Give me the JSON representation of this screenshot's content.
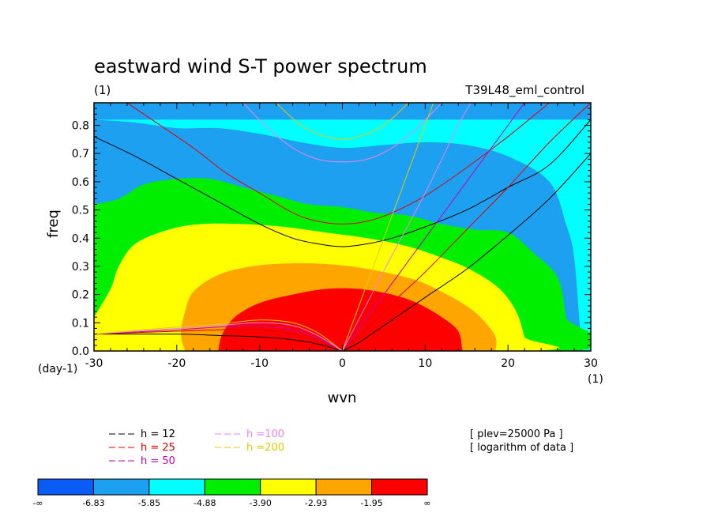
{
  "chart_data": {
    "type": "heatmap",
    "title": "eastward wind S-T power spectrum",
    "subtitle_left": "(1)",
    "subtitle_right": "T39L48_eml_control",
    "xlabel": "wvn",
    "ylabel": "freq",
    "x_unit": "(1)",
    "y_unit": "(day-1)",
    "xlim": [
      -30,
      30
    ],
    "ylim": [
      0.0,
      0.88
    ],
    "xticks": [
      -30,
      -20,
      -10,
      0,
      10,
      20,
      30
    ],
    "xtick_labels": [
      "-30",
      "-20",
      "-10",
      "0",
      "10",
      "20",
      "30"
    ],
    "yticks": [
      0.0,
      0.1,
      0.2,
      0.3,
      0.4,
      0.5,
      0.6,
      0.7,
      0.8
    ],
    "ytick_labels": [
      "0.0",
      "0.1",
      "0.2",
      "0.3",
      "0.4",
      "0.5",
      "0.6",
      "0.7",
      "0.8"
    ],
    "color_levels": {
      "boundaries": [
        "-∞",
        "-6.83",
        "-5.85",
        "-4.88",
        "-3.90",
        "-2.93",
        "-1.95",
        "∞"
      ],
      "colors": [
        "#0a5cf5",
        "#1ea0f0",
        "#00ffff",
        "#00ee00",
        "#ffff00",
        "#ffa500",
        "#ff0000"
      ]
    },
    "filled_regions": [
      {
        "level": 1,
        "color": "#1ea0f0",
        "boundary": [
          [
            -30,
            0.88
          ],
          [
            -30,
            0.88
          ],
          [
            30,
            0.88
          ],
          [
            30,
            0.88
          ]
        ]
      },
      {
        "level": 2,
        "color": "#00ffff",
        "boundary": [
          [
            -30,
            0.82
          ],
          [
            -25,
            0.81
          ],
          [
            -20,
            0.79
          ],
          [
            -15,
            0.79
          ],
          [
            -10,
            0.77
          ],
          [
            -5,
            0.74
          ],
          [
            0,
            0.72
          ],
          [
            5,
            0.73
          ],
          [
            10,
            0.74
          ],
          [
            15,
            0.73
          ],
          [
            20,
            0.69
          ],
          [
            25,
            0.6
          ],
          [
            27,
            0.45
          ],
          [
            28,
            0.33
          ],
          [
            29,
            0.0
          ],
          [
            30,
            0.0
          ],
          [
            30,
            0.82
          ]
        ]
      },
      {
        "level": 3,
        "color": "#00ee00",
        "boundary": [
          [
            -30,
            0.52
          ],
          [
            -27,
            0.54
          ],
          [
            -24,
            0.59
          ],
          [
            -20,
            0.61
          ],
          [
            -16,
            0.61
          ],
          [
            -12,
            0.58
          ],
          [
            -8,
            0.55
          ],
          [
            -4,
            0.52
          ],
          [
            0,
            0.51
          ],
          [
            4,
            0.49
          ],
          [
            8,
            0.48
          ],
          [
            12,
            0.45
          ],
          [
            16,
            0.43
          ],
          [
            20,
            0.42
          ],
          [
            23,
            0.35
          ],
          [
            26,
            0.26
          ],
          [
            27,
            0.12
          ],
          [
            27.5,
            0.0
          ],
          [
            -30,
            0.0
          ]
        ]
      },
      {
        "level": 4,
        "color": "#ffff00",
        "boundary": [
          [
            -30,
            0.12
          ],
          [
            -28,
            0.22
          ],
          [
            -27,
            0.3
          ],
          [
            -25,
            0.38
          ],
          [
            -21,
            0.43
          ],
          [
            -17,
            0.45
          ],
          [
            -12,
            0.45
          ],
          [
            -7,
            0.44
          ],
          [
            -2,
            0.42
          ],
          [
            3,
            0.4
          ],
          [
            8,
            0.37
          ],
          [
            13,
            0.32
          ],
          [
            16,
            0.28
          ],
          [
            19,
            0.22
          ],
          [
            21,
            0.14
          ],
          [
            22,
            0.05
          ],
          [
            22.5,
            0.0
          ],
          [
            -29,
            0.0
          ],
          [
            -30,
            0.03
          ]
        ]
      },
      {
        "level": 5,
        "color": "#ffa500",
        "boundary": [
          [
            -19,
            0.0
          ],
          [
            -19.5,
            0.06
          ],
          [
            -19,
            0.14
          ],
          [
            -18,
            0.21
          ],
          [
            -15,
            0.27
          ],
          [
            -11,
            0.3
          ],
          [
            -7,
            0.31
          ],
          [
            -3,
            0.31
          ],
          [
            1,
            0.3
          ],
          [
            5,
            0.28
          ],
          [
            9,
            0.25
          ],
          [
            12,
            0.21
          ],
          [
            15,
            0.16
          ],
          [
            17,
            0.11
          ],
          [
            18.5,
            0.05
          ],
          [
            18.5,
            0.0
          ]
        ]
      },
      {
        "level": 6,
        "color": "#ff0000",
        "boundary": [
          [
            -15,
            0.0
          ],
          [
            -14.5,
            0.06
          ],
          [
            -13,
            0.12
          ],
          [
            -10,
            0.17
          ],
          [
            -6,
            0.2
          ],
          [
            -2,
            0.22
          ],
          [
            2,
            0.22
          ],
          [
            6,
            0.2
          ],
          [
            9,
            0.17
          ],
          [
            12,
            0.12
          ],
          [
            14,
            0.07
          ],
          [
            14.5,
            0.0
          ]
        ]
      }
    ],
    "dispersion_curves": [
      {
        "name": "h = 12",
        "color": "#000000",
        "curves": [
          [
            [
              -30,
              0.76
            ],
            [
              -25,
              0.69
            ],
            [
              -20,
              0.61
            ],
            [
              -15,
              0.53
            ],
            [
              -10,
              0.45
            ],
            [
              -6,
              0.4
            ],
            [
              -3,
              0.38
            ],
            [
              0,
              0.37
            ],
            [
              3,
              0.38
            ],
            [
              6,
              0.4
            ],
            [
              10,
              0.44
            ],
            [
              15,
              0.5
            ],
            [
              20,
              0.58
            ],
            [
              25,
              0.66
            ],
            [
              30,
              0.82
            ]
          ],
          [
            [
              -30,
              0.06
            ],
            [
              -20,
              0.06
            ],
            [
              -15,
              0.055
            ],
            [
              -10,
              0.05
            ],
            [
              -6,
              0.04
            ],
            [
              -3,
              0.025
            ],
            [
              0,
              0.0
            ]
          ],
          [
            [
              0,
              0.0
            ],
            [
              2,
              0.03
            ],
            [
              5,
              0.09
            ],
            [
              10,
              0.19
            ],
            [
              15,
              0.29
            ],
            [
              20,
              0.41
            ],
            [
              25,
              0.54
            ],
            [
              30,
              0.7
            ]
          ]
        ]
      },
      {
        "name": "h = 25",
        "color": "#e00000",
        "curves": [
          [
            [
              -26,
              0.88
            ],
            [
              -22,
              0.8
            ],
            [
              -18,
              0.72
            ],
            [
              -14,
              0.63
            ],
            [
              -10,
              0.56
            ],
            [
              -6,
              0.49
            ],
            [
              -3,
              0.46
            ],
            [
              0,
              0.45
            ],
            [
              3,
              0.46
            ],
            [
              6,
              0.49
            ],
            [
              10,
              0.55
            ],
            [
              15,
              0.65
            ],
            [
              20,
              0.76
            ],
            [
              25,
              0.88
            ]
          ],
          [
            [
              -30,
              0.06
            ],
            [
              -20,
              0.07
            ],
            [
              -15,
              0.075
            ],
            [
              -10,
              0.075
            ],
            [
              -6,
              0.06
            ],
            [
              -3,
              0.035
            ],
            [
              0,
              0.0
            ]
          ],
          [
            [
              0,
              0.0
            ],
            [
              3,
              0.08
            ],
            [
              6,
              0.17
            ],
            [
              10,
              0.28
            ],
            [
              15,
              0.43
            ],
            [
              20,
              0.58
            ],
            [
              25,
              0.74
            ],
            [
              30,
              0.88
            ]
          ]
        ]
      },
      {
        "name": "h = 50",
        "color": "#c000c0",
        "curves": [
          [
            [
              -30,
              0.06
            ],
            [
              -20,
              0.075
            ],
            [
              -15,
              0.085
            ],
            [
              -10,
              0.09
            ],
            [
              -6,
              0.075
            ],
            [
              -3,
              0.045
            ],
            [
              0,
              0.0
            ]
          ],
          [
            [
              0,
              0.0
            ],
            [
              3,
              0.12
            ],
            [
              6,
              0.24
            ],
            [
              10,
              0.4
            ],
            [
              15,
              0.6
            ],
            [
              20,
              0.8
            ],
            [
              22,
              0.88
            ]
          ]
        ]
      },
      {
        "name": "h =100",
        "color": "#ee82ee",
        "curves": [
          [
            [
              -12,
              0.88
            ],
            [
              -9,
              0.79
            ],
            [
              -6,
              0.72
            ],
            [
              -3,
              0.68
            ],
            [
              0,
              0.67
            ],
            [
              3,
              0.68
            ],
            [
              6,
              0.72
            ],
            [
              9,
              0.79
            ],
            [
              12,
              0.88
            ]
          ],
          [
            [
              -30,
              0.06
            ],
            [
              -20,
              0.08
            ],
            [
              -15,
              0.09
            ],
            [
              -10,
              0.1
            ],
            [
              -6,
              0.09
            ],
            [
              -3,
              0.055
            ],
            [
              0,
              0.0
            ]
          ],
          [
            [
              0,
              0.0
            ],
            [
              3,
              0.17
            ],
            [
              6,
              0.34
            ],
            [
              10,
              0.56
            ],
            [
              14,
              0.8
            ],
            [
              15.5,
              0.88
            ]
          ]
        ]
      },
      {
        "name": "h =200",
        "color": "#e8c800",
        "curves": [
          [
            [
              -8,
              0.88
            ],
            [
              -5,
              0.8
            ],
            [
              -2,
              0.76
            ],
            [
              0,
              0.75
            ],
            [
              2,
              0.76
            ],
            [
              5,
              0.8
            ],
            [
              8,
              0.88
            ]
          ],
          [
            [
              -30,
              0.06
            ],
            [
              -20,
              0.085
            ],
            [
              -15,
              0.095
            ],
            [
              -10,
              0.11
            ],
            [
              -6,
              0.1
            ],
            [
              -3,
              0.065
            ],
            [
              0,
              0.0
            ]
          ],
          [
            [
              0,
              0.0
            ],
            [
              3,
              0.24
            ],
            [
              6,
              0.48
            ],
            [
              9,
              0.72
            ],
            [
              11,
              0.88
            ]
          ]
        ]
      }
    ],
    "legend_entries": [
      "h = 12",
      "h = 25",
      "h = 50",
      "h =100",
      "h =200"
    ],
    "notes": [
      "[ plev=25000 Pa ]",
      "[ logarithm of data ]"
    ]
  }
}
